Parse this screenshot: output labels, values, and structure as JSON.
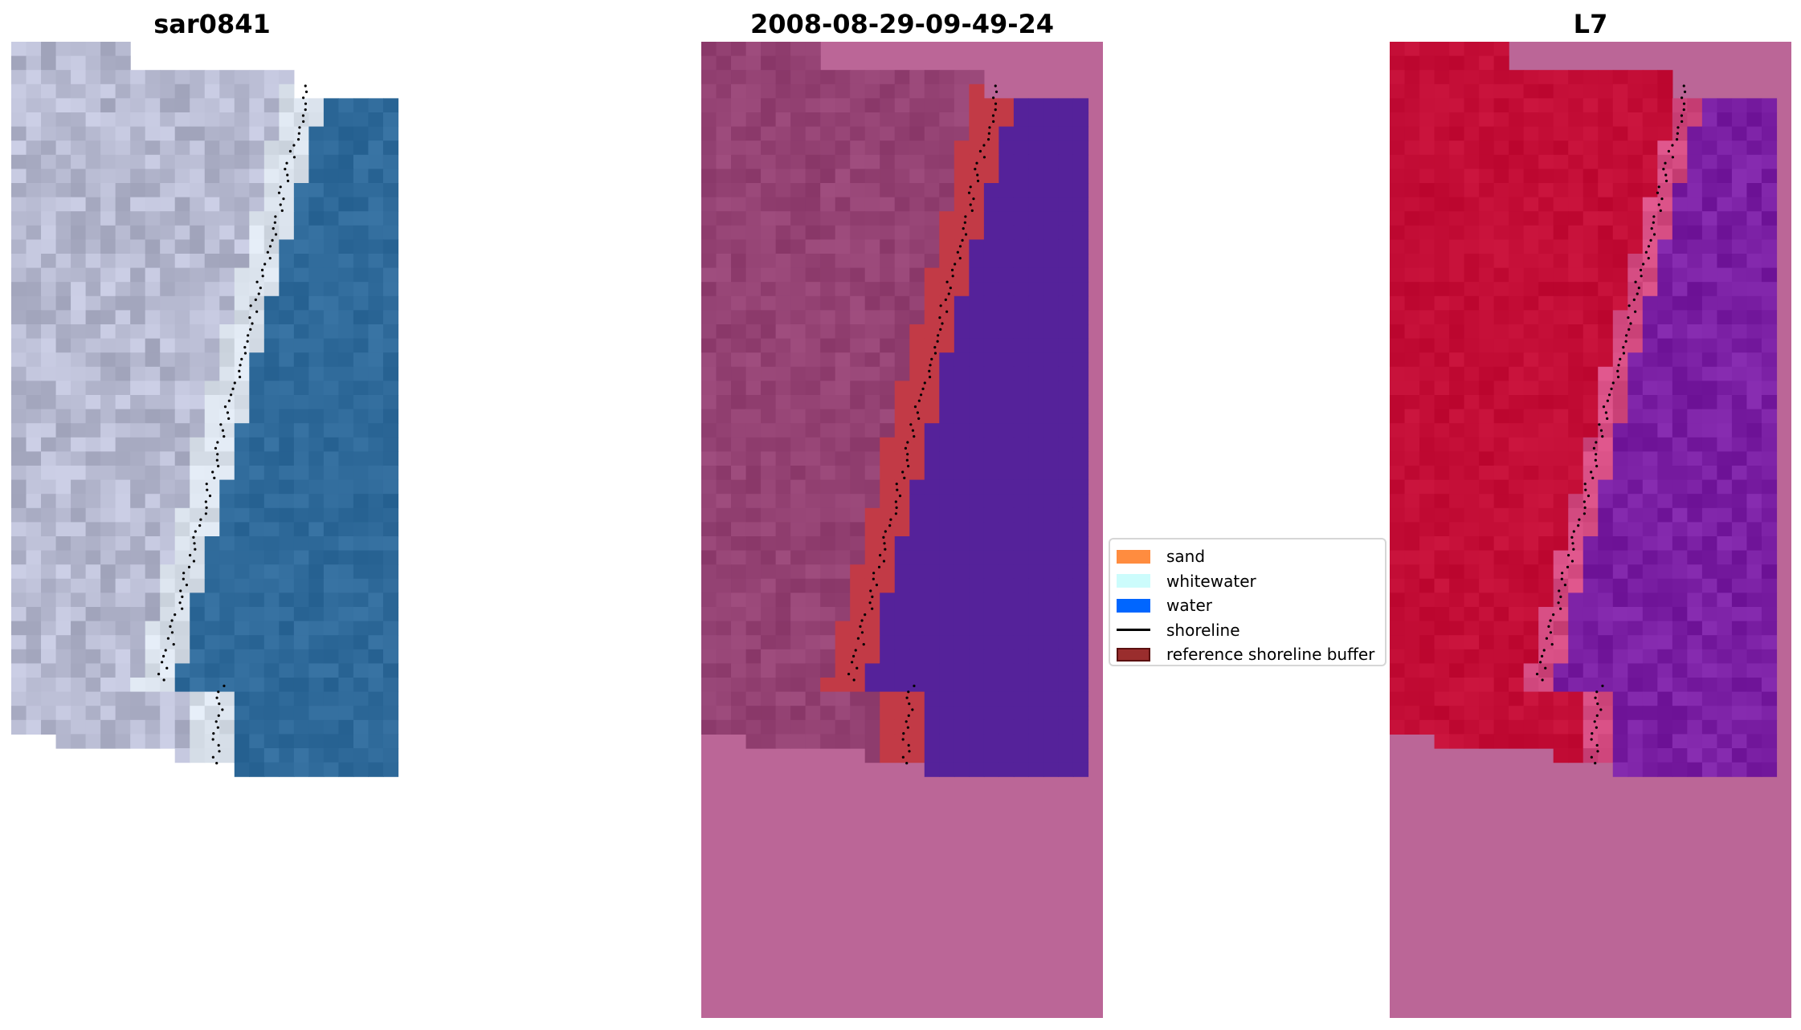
{
  "panels": [
    {
      "title": "sar0841"
    },
    {
      "title": "2008-08-29-09-49-24"
    },
    {
      "title": "L7"
    }
  ],
  "legend": {
    "items": [
      {
        "label": "sand",
        "type": "patch",
        "color": "#ff8c3f"
      },
      {
        "label": "whitewater",
        "type": "patch",
        "color": "#ccfcfc"
      },
      {
        "label": "water",
        "type": "patch",
        "color": "#0066ff"
      },
      {
        "label": "shoreline",
        "type": "line",
        "color": "#000000"
      },
      {
        "label": "reference shoreline buffer",
        "type": "patch",
        "color": "#9a2d2d",
        "edge": "#5a1010"
      }
    ]
  },
  "colors": {
    "rgb_land": "#b6b9d0",
    "rgb_water": "#2f6a9a",
    "classified_land": "#944273",
    "classified_water": "#55229a",
    "classified_buffer": "#c23a46",
    "nodata": "#bb6697",
    "mndwi_land": "#c30d36",
    "mndwi_water": "#7a1fa3"
  }
}
